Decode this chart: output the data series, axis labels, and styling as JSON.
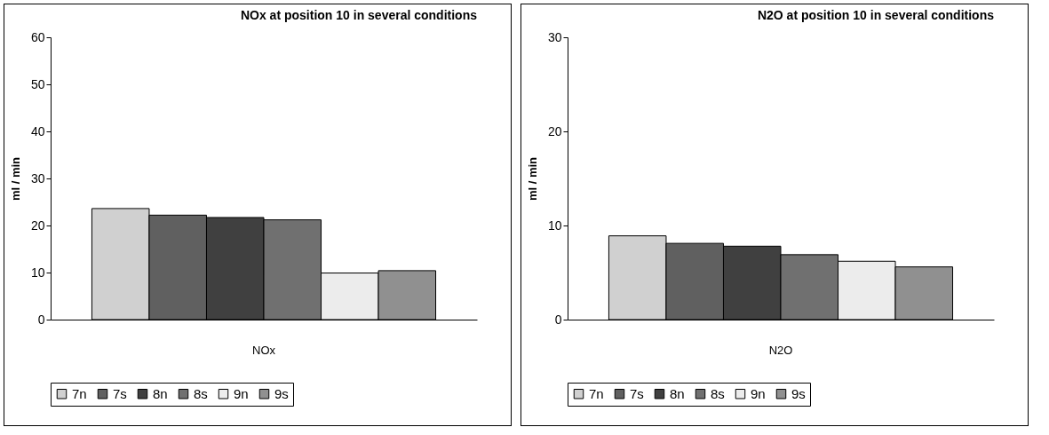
{
  "chart_data": [
    {
      "type": "bar",
      "title": "NOx at position 10 in several conditions",
      "ylabel": "ml / min",
      "categories": [
        "NOx"
      ],
      "series": [
        {
          "name": "7n",
          "color": "#d0d0d0",
          "values": [
            23.6
          ]
        },
        {
          "name": "7s",
          "color": "#606060",
          "values": [
            22.2
          ]
        },
        {
          "name": "8n",
          "color": "#404040",
          "values": [
            21.7
          ]
        },
        {
          "name": "8s",
          "color": "#707070",
          "values": [
            21.2
          ]
        },
        {
          "name": "9n",
          "color": "#ececec",
          "values": [
            9.9
          ]
        },
        {
          "name": "9s",
          "color": "#909090",
          "values": [
            10.4
          ]
        }
      ],
      "ylim": [
        0,
        60
      ],
      "yticks": [
        0,
        10,
        20,
        30,
        40,
        50,
        60
      ],
      "grid": false,
      "legend": "bottom"
    },
    {
      "type": "bar",
      "title": "N2O at position 10 in several conditions",
      "ylabel": "ml / min",
      "categories": [
        "N2O"
      ],
      "series": [
        {
          "name": "7n",
          "color": "#d0d0d0",
          "values": [
            8.9
          ]
        },
        {
          "name": "7s",
          "color": "#606060",
          "values": [
            8.1
          ]
        },
        {
          "name": "8n",
          "color": "#404040",
          "values": [
            7.8
          ]
        },
        {
          "name": "8s",
          "color": "#707070",
          "values": [
            6.9
          ]
        },
        {
          "name": "9n",
          "color": "#ececec",
          "values": [
            6.2
          ]
        },
        {
          "name": "9s",
          "color": "#909090",
          "values": [
            5.6
          ]
        }
      ],
      "ylim": [
        0,
        30
      ],
      "yticks": [
        0,
        10,
        20,
        30
      ],
      "grid": false,
      "legend": "bottom"
    }
  ]
}
